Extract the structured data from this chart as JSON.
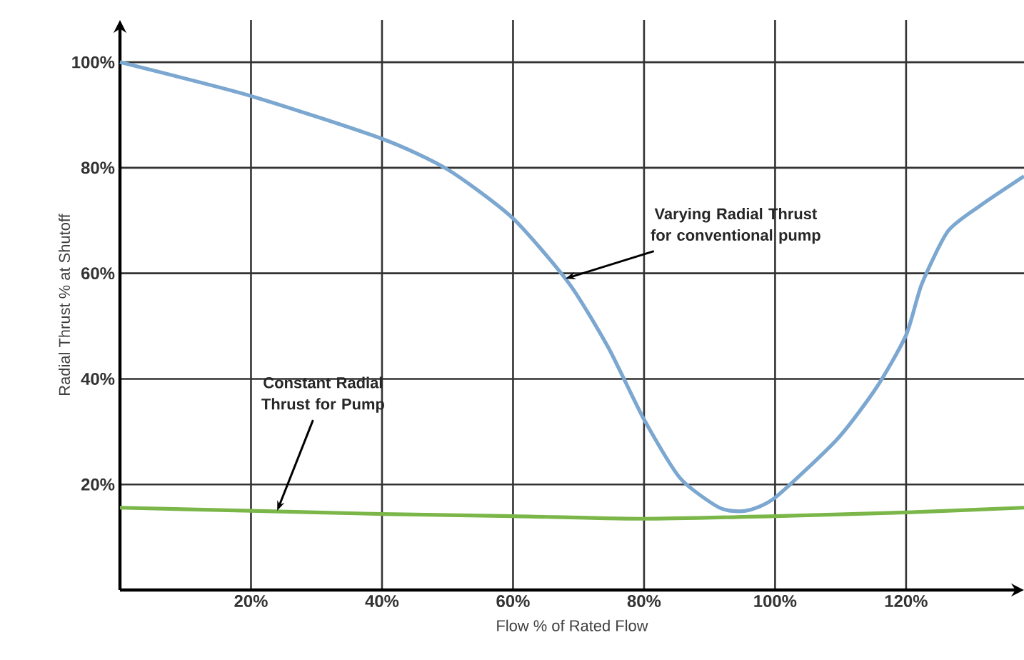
{
  "chart_data": {
    "type": "line",
    "xlabel": "Flow % of Rated Flow",
    "ylabel": "Radial Thrust % at Shutoff",
    "xlim": [
      0,
      138
    ],
    "ylim": [
      0,
      108
    ],
    "xticks": [
      {
        "value": 20,
        "label": "20%"
      },
      {
        "value": 40,
        "label": "40%"
      },
      {
        "value": 60,
        "label": "60%"
      },
      {
        "value": 80,
        "label": "80%"
      },
      {
        "value": 100,
        "label": "100%"
      },
      {
        "value": 120,
        "label": "120%"
      }
    ],
    "yticks": [
      {
        "value": 20,
        "label": "20%"
      },
      {
        "value": 40,
        "label": "40%"
      },
      {
        "value": 60,
        "label": "60%"
      },
      {
        "value": 80,
        "label": "80%"
      },
      {
        "value": 100,
        "label": "100%"
      }
    ],
    "grid": true,
    "marker": "none",
    "line_style": "solid",
    "series": [
      {
        "color": "#7ba7d0",
        "x": [
          0,
          20,
          40,
          50,
          60,
          68.6,
          74.6,
          80,
          85.5,
          91.5,
          95.5,
          100,
          109.5,
          115.5,
          120,
          122.4,
          126.4,
          131.4,
          138
        ],
        "values": [
          100,
          93.6,
          85.5,
          79.7,
          70.4,
          58,
          45.8,
          32.3,
          21.2,
          15.6,
          15,
          17.5,
          28.6,
          38.4,
          48.3,
          58,
          68,
          72.9,
          78.4
        ]
      },
      {
        "color": "#7ab648",
        "x": [
          0,
          20,
          40,
          60,
          80,
          100,
          120,
          138
        ],
        "values": [
          15.6,
          15,
          14.4,
          14,
          13.5,
          14,
          14.7,
          15.6
        ]
      }
    ],
    "annotations": [
      {
        "text": "Varying Radial Thrust for conventional pump",
        "x": 68,
        "y": 59
      },
      {
        "text": "Constant Radial Thrust for Pump",
        "x": 24,
        "y": 15
      }
    ]
  }
}
